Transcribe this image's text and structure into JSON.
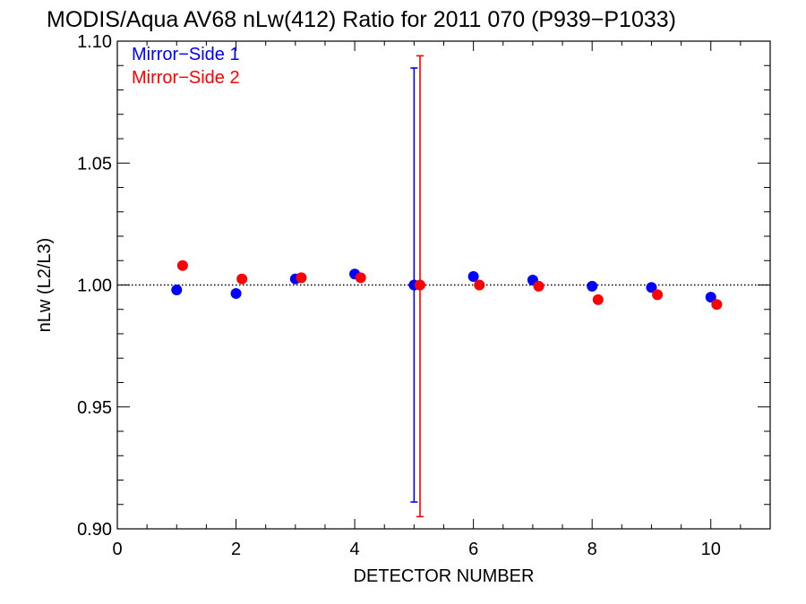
{
  "chart_data": {
    "type": "scatter",
    "title": "MODIS/Aqua AV68 nLw(412) Ratio for 2011 070 (P939−P1033)",
    "xlabel": "DETECTOR NUMBER",
    "ylabel": "nLw (L2/L3)",
    "xlim": [
      0,
      11
    ],
    "ylim": [
      0.9,
      1.1
    ],
    "x_ticks": [
      0,
      2,
      4,
      6,
      8,
      10
    ],
    "x_tick_labels": [
      "0",
      "2",
      "4",
      "6",
      "8",
      "10"
    ],
    "y_ticks": [
      0.9,
      0.95,
      1.0,
      1.05,
      1.1
    ],
    "y_tick_labels": [
      "0.90",
      "0.95",
      "1.00",
      "1.05",
      "1.10"
    ],
    "reference_line": 1.0,
    "legend_position": "top-left",
    "series": [
      {
        "name": "Mirror−Side 1",
        "color": "#0000ff",
        "x": [
          1,
          2,
          3,
          4,
          5,
          6,
          7,
          8,
          9,
          10
        ],
        "y": [
          0.998,
          0.9965,
          1.0025,
          1.0045,
          1.0,
          1.0035,
          1.002,
          0.9995,
          0.999,
          0.995
        ],
        "error_bars": [
          {
            "x": 5,
            "low": 0.911,
            "high": 1.089
          }
        ]
      },
      {
        "name": "Mirror−Side 2",
        "color": "#ff0000",
        "x": [
          1.1,
          2.1,
          3.1,
          4.1,
          5.1,
          6.1,
          7.1,
          8.1,
          9.1,
          10.1
        ],
        "y": [
          1.008,
          1.0025,
          1.003,
          1.003,
          1.0,
          1.0,
          0.9995,
          0.994,
          0.996,
          0.992
        ],
        "error_bars": [
          {
            "x": 5.1,
            "low": 0.905,
            "high": 1.094
          }
        ]
      }
    ]
  }
}
